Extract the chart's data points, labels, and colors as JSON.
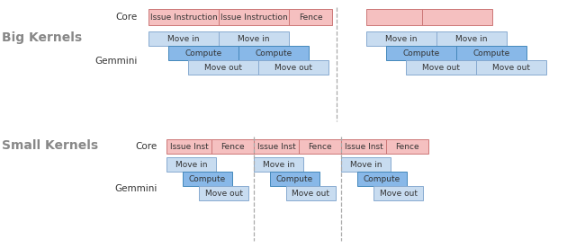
{
  "fig_width": 6.4,
  "fig_height": 2.76,
  "dpi": 100,
  "bg_color": "#ffffff",
  "pink_fill": "#f5c0c0",
  "pink_edge": "#cc7777",
  "blue_light_fill": "#c8dcf0",
  "blue_light_edge": "#88aad0",
  "blue_mid_fill": "#88b8e8",
  "blue_mid_edge": "#4488bb",
  "section_label_color": "#888888",
  "big_kernels_label": "Big Kernels",
  "small_kernels_label": "Small Kernels",
  "core_label": "Core",
  "gemmini_label": "Gemmini",
  "font_size_section": 10,
  "font_size_label": 7.5,
  "font_size_box": 6.5,
  "dashed_line_color": "#aaaaaa",
  "text_color": "#333333"
}
